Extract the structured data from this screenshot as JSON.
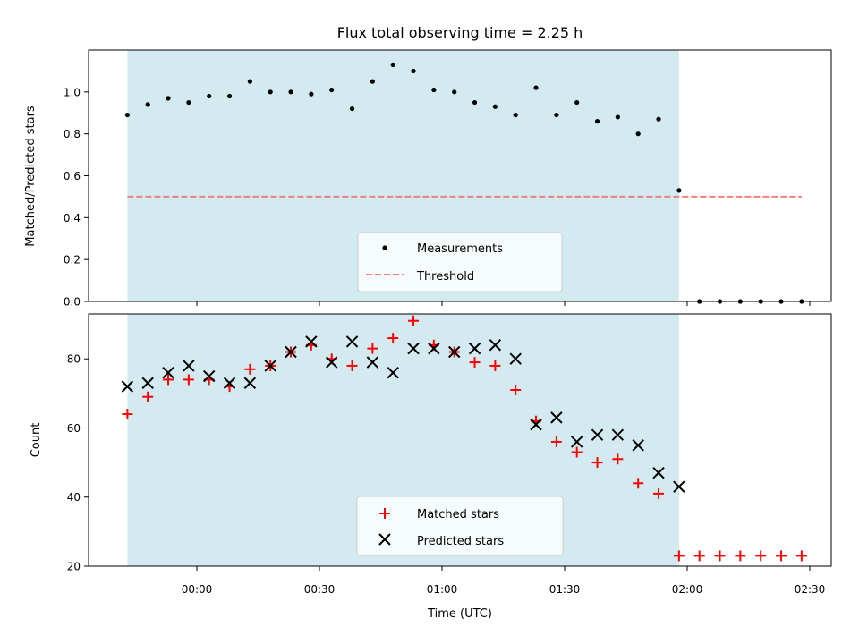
{
  "chart_data": [
    {
      "type": "scatter",
      "title": "Flux total observing time = 2.25 h",
      "xlabel": "",
      "ylabel": "Matched/Predicted stars",
      "ylim": [
        0.0,
        1.2
      ],
      "yticks": [
        "0.0",
        "0.2",
        "0.4",
        "0.6",
        "0.8",
        "1.0"
      ],
      "shaded_span": {
        "start": "23:43",
        "end": "01:58",
        "color": "#d3eaf0"
      },
      "threshold": {
        "name": "Threshold",
        "value": 0.5,
        "start": "23:43",
        "end": "02:28",
        "color": "#f08080",
        "style": "dashed"
      },
      "series": [
        {
          "name": "Measurements",
          "marker": "dot",
          "color": "#000000",
          "points": [
            [
              "23:43",
              0.89
            ],
            [
              "23:48",
              0.94
            ],
            [
              "23:53",
              0.97
            ],
            [
              "23:58",
              0.95
            ],
            [
              "00:03",
              0.98
            ],
            [
              "00:08",
              0.98
            ],
            [
              "00:13",
              1.05
            ],
            [
              "00:18",
              1.0
            ],
            [
              "00:23",
              1.0
            ],
            [
              "00:28",
              0.99
            ],
            [
              "00:33",
              1.01
            ],
            [
              "00:38",
              0.92
            ],
            [
              "00:43",
              1.05
            ],
            [
              "00:48",
              1.13
            ],
            [
              "00:53",
              1.1
            ],
            [
              "00:58",
              1.01
            ],
            [
              "01:03",
              1.0
            ],
            [
              "01:08",
              0.95
            ],
            [
              "01:13",
              0.93
            ],
            [
              "01:18",
              0.89
            ],
            [
              "01:23",
              1.02
            ],
            [
              "01:28",
              0.89
            ],
            [
              "01:33",
              0.95
            ],
            [
              "01:38",
              0.86
            ],
            [
              "01:43",
              0.88
            ],
            [
              "01:48",
              0.8
            ],
            [
              "01:53",
              0.87
            ],
            [
              "01:58",
              0.53
            ],
            [
              "02:03",
              0.0
            ],
            [
              "02:08",
              0.0
            ],
            [
              "02:13",
              0.0
            ],
            [
              "02:18",
              0.0
            ],
            [
              "02:23",
              0.0
            ],
            [
              "02:28",
              0.0
            ]
          ]
        }
      ],
      "legend": {
        "placement": "bottom-center",
        "entries": [
          "Measurements",
          "Threshold"
        ]
      }
    },
    {
      "type": "scatter",
      "title": "",
      "xlabel": "Time (UTC)",
      "ylabel": "Count",
      "ylim": [
        20,
        93
      ],
      "yticks": [
        "20",
        "40",
        "60",
        "80"
      ],
      "xticks": [
        "00:00",
        "00:30",
        "01:00",
        "01:30",
        "02:00",
        "02:30"
      ],
      "shaded_span": {
        "start": "23:43",
        "end": "01:58",
        "color": "#d3eaf0"
      },
      "series": [
        {
          "name": "Matched stars",
          "marker": "plus",
          "color": "#ff0000",
          "points": [
            [
              "23:43",
              64
            ],
            [
              "23:48",
              69
            ],
            [
              "23:53",
              74
            ],
            [
              "23:58",
              74
            ],
            [
              "00:03",
              74
            ],
            [
              "00:08",
              72
            ],
            [
              "00:13",
              77
            ],
            [
              "00:18",
              78
            ],
            [
              "00:23",
              82
            ],
            [
              "00:28",
              84
            ],
            [
              "00:33",
              80
            ],
            [
              "00:38",
              78
            ],
            [
              "00:43",
              83
            ],
            [
              "00:48",
              86
            ],
            [
              "00:53",
              91
            ],
            [
              "00:58",
              84
            ],
            [
              "01:03",
              82
            ],
            [
              "01:08",
              79
            ],
            [
              "01:13",
              78
            ],
            [
              "01:18",
              71
            ],
            [
              "01:23",
              62
            ],
            [
              "01:28",
              56
            ],
            [
              "01:33",
              53
            ],
            [
              "01:38",
              50
            ],
            [
              "01:43",
              51
            ],
            [
              "01:48",
              44
            ],
            [
              "01:53",
              41
            ],
            [
              "01:58",
              23
            ],
            [
              "02:03",
              23
            ],
            [
              "02:08",
              23
            ],
            [
              "02:13",
              23
            ],
            [
              "02:18",
              23
            ],
            [
              "02:23",
              23
            ],
            [
              "02:28",
              23
            ]
          ]
        },
        {
          "name": "Predicted stars",
          "marker": "x",
          "color": "#000000",
          "points": [
            [
              "23:43",
              72
            ],
            [
              "23:48",
              73
            ],
            [
              "23:53",
              76
            ],
            [
              "23:58",
              78
            ],
            [
              "00:03",
              75
            ],
            [
              "00:08",
              73
            ],
            [
              "00:13",
              73
            ],
            [
              "00:18",
              78
            ],
            [
              "00:23",
              82
            ],
            [
              "00:28",
              85
            ],
            [
              "00:33",
              79
            ],
            [
              "00:38",
              85
            ],
            [
              "00:43",
              79
            ],
            [
              "00:48",
              76
            ],
            [
              "00:53",
              83
            ],
            [
              "00:58",
              83
            ],
            [
              "01:03",
              82
            ],
            [
              "01:08",
              83
            ],
            [
              "01:13",
              84
            ],
            [
              "01:18",
              80
            ],
            [
              "01:23",
              61
            ],
            [
              "01:28",
              63
            ],
            [
              "01:33",
              56
            ],
            [
              "01:38",
              58
            ],
            [
              "01:43",
              58
            ],
            [
              "01:48",
              55
            ],
            [
              "01:53",
              47
            ],
            [
              "01:58",
              43
            ]
          ]
        }
      ],
      "legend": {
        "placement": "bottom-center",
        "entries": [
          "Matched stars",
          "Predicted stars"
        ]
      }
    }
  ]
}
